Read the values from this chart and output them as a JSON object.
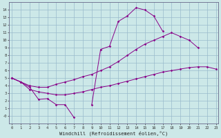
{
  "xlabel": "Windchill (Refroidissement éolien,°C)",
  "bg_color": "#cce8e8",
  "line_color": "#880088",
  "grid_color": "#99bbcc",
  "hours": [
    0,
    1,
    2,
    3,
    4,
    5,
    6,
    7,
    8,
    9,
    10,
    11,
    12,
    13,
    14,
    15,
    16,
    17,
    18,
    19,
    20,
    21,
    22,
    23
  ],
  "line1": [
    5.0,
    4.5,
    3.8,
    2.2,
    2.3,
    1.5,
    1.5,
    -0.2,
    null,
    1.5,
    8.8,
    9.2,
    12.5,
    13.2,
    14.3,
    14.0,
    13.2,
    11.2,
    null,
    null,
    null,
    null,
    null,
    null
  ],
  "line2": [
    5.0,
    4.5,
    4.0,
    3.8,
    3.8,
    4.2,
    4.5,
    4.8,
    5.2,
    5.5,
    6.0,
    6.5,
    7.2,
    8.0,
    8.8,
    9.5,
    10.0,
    10.5,
    11.0,
    10.5,
    10.0,
    9.0,
    null,
    null
  ],
  "line3": [
    5.0,
    4.5,
    3.5,
    3.2,
    3.0,
    2.8,
    2.8,
    3.0,
    3.2,
    3.5,
    3.8,
    4.0,
    4.3,
    4.6,
    4.9,
    5.2,
    5.5,
    5.8,
    6.0,
    6.2,
    6.4,
    6.5,
    6.5,
    6.2
  ],
  "xlim": [
    0,
    23
  ],
  "ylim": [
    -1.0,
    15
  ],
  "yticks": [
    0,
    1,
    2,
    3,
    4,
    5,
    6,
    7,
    8,
    9,
    10,
    11,
    12,
    13,
    14
  ],
  "xticks": [
    0,
    1,
    2,
    3,
    4,
    5,
    6,
    7,
    8,
    9,
    10,
    11,
    12,
    13,
    14,
    15,
    16,
    17,
    18,
    19,
    20,
    21,
    22,
    23
  ]
}
